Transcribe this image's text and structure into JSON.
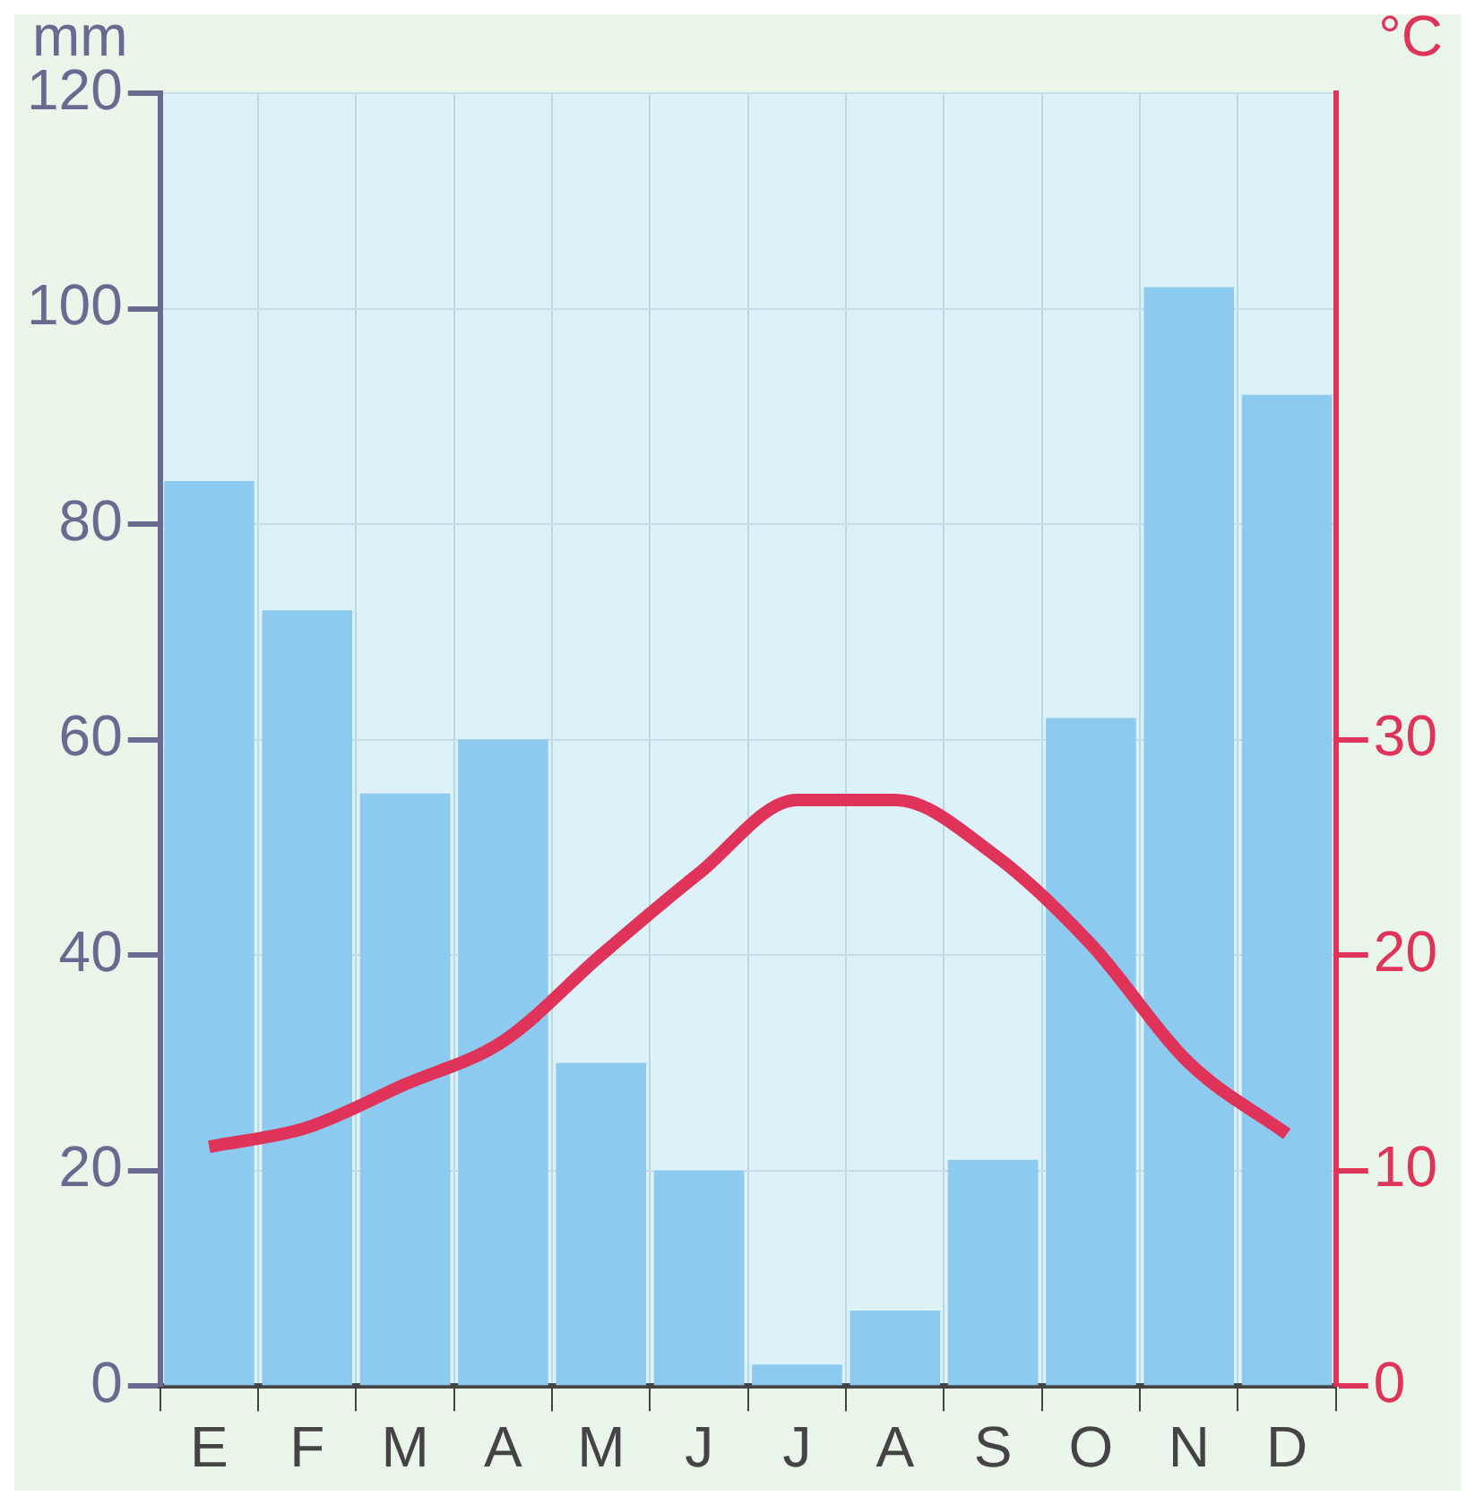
{
  "chart_data": {
    "type": "bar",
    "ylabel": "mm",
    "y2label": "°C",
    "categories": [
      "E",
      "F",
      "M",
      "A",
      "M",
      "J",
      "J",
      "A",
      "S",
      "O",
      "N",
      "D"
    ],
    "series": [
      {
        "color": "#8ccbef",
        "values": [
          84,
          72,
          55,
          60,
          30,
          20,
          2,
          7,
          21,
          62,
          102,
          92
        ]
      },
      {
        "type": "line",
        "axis": "y2",
        "color": "#e0335a",
        "values": [
          11.1,
          12,
          14,
          16,
          20,
          23.8,
          27.2,
          27.2,
          24.7,
          20.5,
          15,
          11.7
        ]
      }
    ],
    "ylim": [
      0,
      120
    ],
    "yticks": [
      0,
      20,
      40,
      60,
      80,
      100,
      120
    ],
    "y2lim": [
      0,
      60
    ],
    "y2ticks": [
      0,
      10,
      20,
      30
    ],
    "grid": true,
    "legend": false,
    "marker": "none",
    "line_style": "solid"
  }
}
